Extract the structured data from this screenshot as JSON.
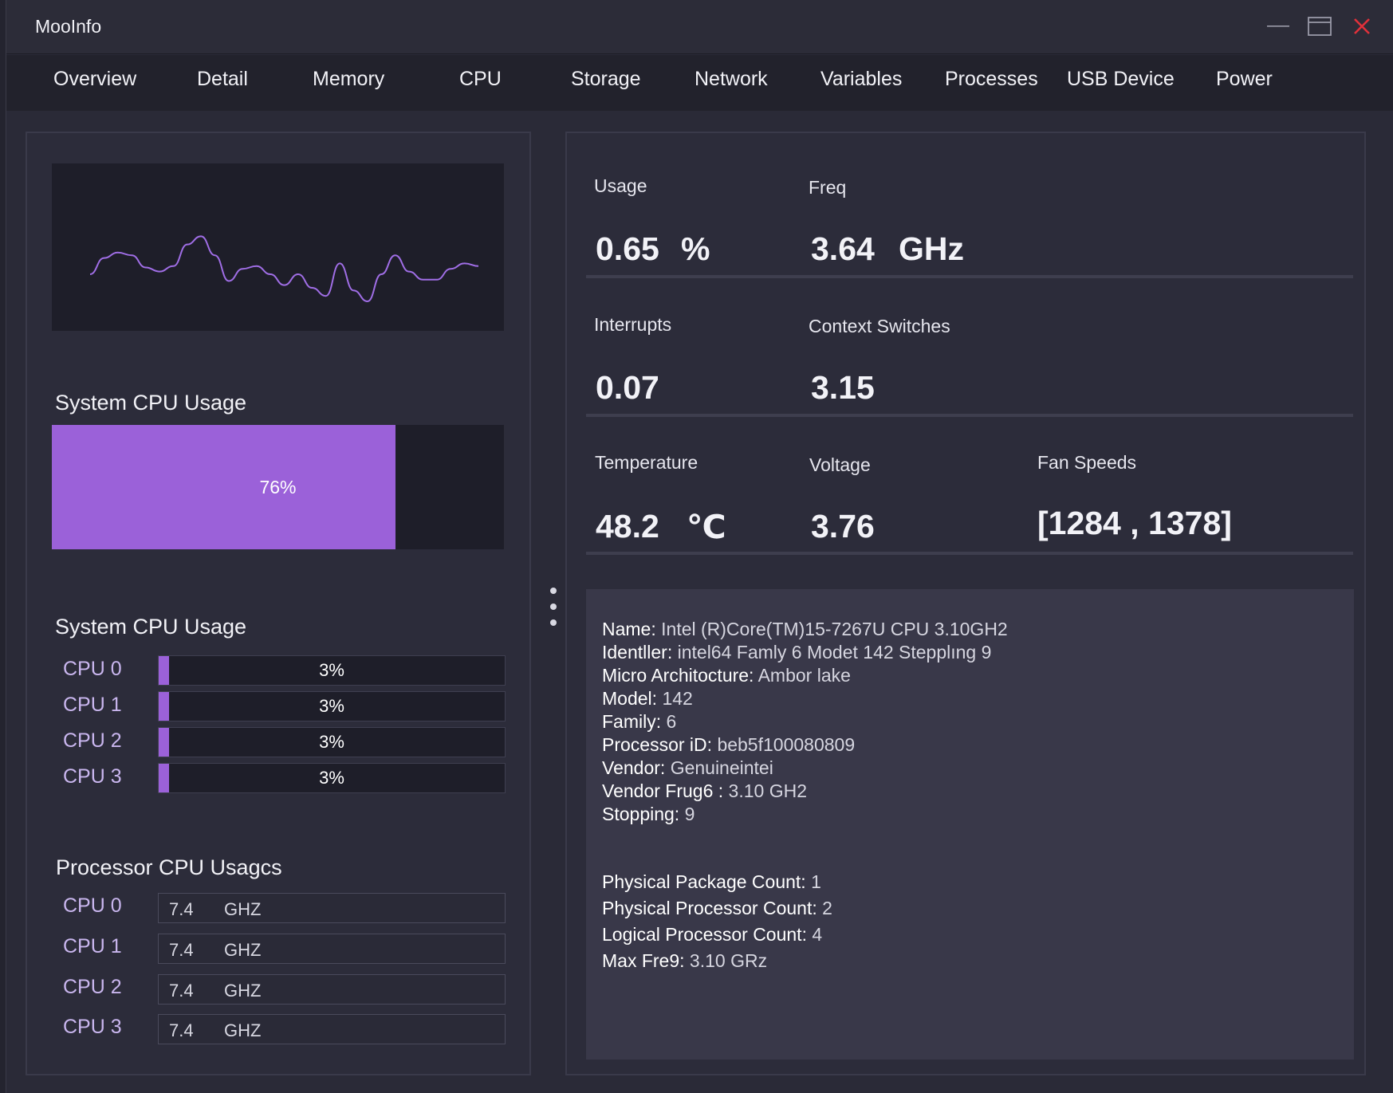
{
  "window": {
    "title": "MooInfo",
    "controls": {
      "minimize": "minimize-icon",
      "maximize": "maximize-icon",
      "close": "close-icon",
      "close_color": "#e0303a"
    }
  },
  "tabs": [
    "Overview",
    "Detail",
    "Memory",
    "CPU",
    "Storage",
    "Network",
    "Variables",
    "Processes",
    "USB Device",
    "Power"
  ],
  "left": {
    "sparkline": {
      "color": "#a06ee6",
      "values": [
        30,
        42,
        46,
        44,
        35,
        32,
        36,
        52,
        58,
        44,
        25,
        34,
        36,
        30,
        22,
        30,
        20,
        14,
        38,
        18,
        10,
        30,
        44,
        32,
        26,
        26,
        34,
        38,
        36
      ]
    },
    "system_usage": {
      "title": "System CPU Usage",
      "label": "76%",
      "percent": 76,
      "fill_color": "#9b61d9"
    },
    "per_core": {
      "title": "System CPU Usage",
      "rows": [
        {
          "name": "CPU 0",
          "label": "3%",
          "percent": 3
        },
        {
          "name": "CPU 1",
          "label": "3%",
          "percent": 3
        },
        {
          "name": "CPU 2",
          "label": "3%",
          "percent": 3
        },
        {
          "name": "CPU 3",
          "label": "3%",
          "percent": 3
        }
      ]
    },
    "processor_freq": {
      "title": "Processor CPU Usagcs",
      "rows": [
        {
          "name": "CPU 0",
          "value": "7.4",
          "unit": "GHZ"
        },
        {
          "name": "CPU 1",
          "value": "7.4",
          "unit": "GHZ"
        },
        {
          "name": "CPU 2",
          "value": "7.4",
          "unit": "GHZ"
        },
        {
          "name": "CPU 3",
          "value": "7.4",
          "unit": "GHZ"
        }
      ]
    }
  },
  "stats": {
    "usage": {
      "label": "Usage",
      "value": "0.65",
      "unit": "%"
    },
    "freq": {
      "label": "Freq",
      "value": "3.64",
      "unit": "GHz"
    },
    "interrupts": {
      "label": "Interrupts",
      "value": "0.07"
    },
    "context_switches": {
      "label": "Context Switches",
      "value": "3.15"
    },
    "temperature": {
      "label": "Temperature",
      "value": "48.2",
      "unit": "℃"
    },
    "voltage": {
      "label": "Voltage",
      "value": "3.76"
    },
    "fan_speeds": {
      "label": "Fan Speeds",
      "value": "[1284 , 1378]"
    }
  },
  "info": {
    "lines_a": [
      {
        "key": "Name:",
        "value": "Intel  (R)Core(TM)15-7267U CPU 3.10GH2"
      },
      {
        "key": "Identller:",
        "value": "intel64 Famly 6 Modet 142 Stepplıng 9"
      },
      {
        "key": "Micro Architocture:",
        "value": "Ambor lake"
      },
      {
        "key": "Model:",
        "value": "142"
      },
      {
        "key": "Family:",
        "value": "6"
      },
      {
        "key": "Processor iD:",
        "value": "beb5f100080809"
      },
      {
        "key": "Vendor:",
        "value": "Genuineintei"
      },
      {
        "key": "Vendor Frug6 :",
        "value": "3.10 GH2"
      },
      {
        "key": "Stopping:",
        "value": "9"
      }
    ],
    "lines_b": [
      {
        "key": "Physical Package Count:",
        "value": "1"
      },
      {
        "key": "Physical Processor Count:",
        "value": "2"
      },
      {
        "key": "Logical Processor Count:",
        "value": "4"
      },
      {
        "key": "Max Fre9:",
        "value": "3.10 GRz"
      }
    ]
  }
}
